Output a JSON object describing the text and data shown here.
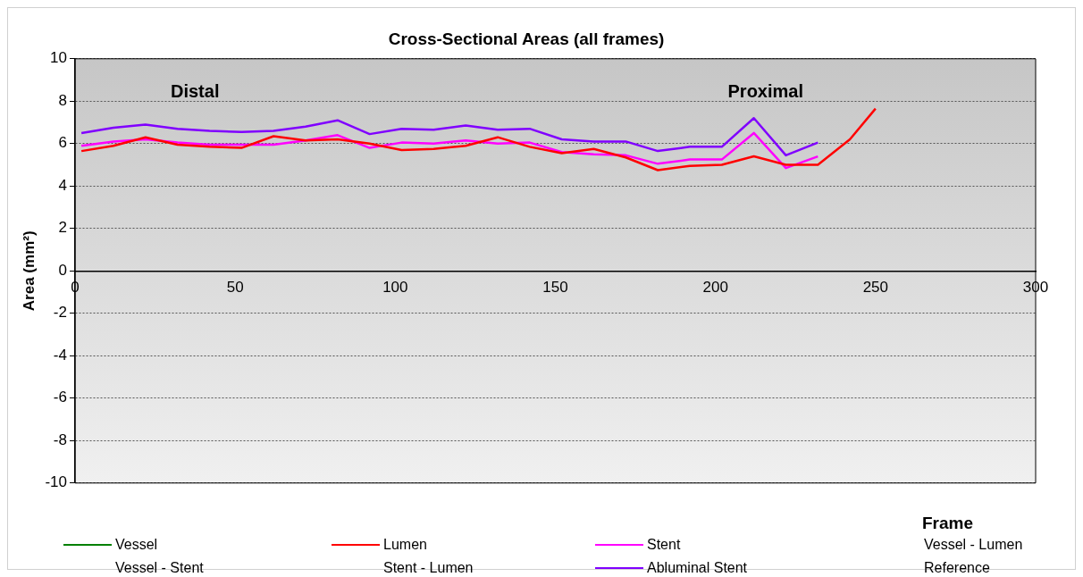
{
  "chart_data": {
    "type": "line",
    "title": "Cross-Sectional Areas (all frames)",
    "xlabel": "Frame",
    "ylabel": "Area (mm²)",
    "xlim": [
      0,
      300
    ],
    "xticks": [
      0,
      50,
      100,
      150,
      200,
      250,
      300
    ],
    "ylim": [
      -10,
      10
    ],
    "yticks": [
      -10,
      -8,
      -6,
      -4,
      -2,
      0,
      2,
      4,
      6,
      8,
      10
    ],
    "grid": "y",
    "legend": "bottom",
    "marker": "none",
    "line_style": "solid",
    "annotations": [
      "Distal",
      "Proximal"
    ],
    "series": [
      {
        "name": "Vessel",
        "color": "#008000"
      },
      {
        "name": "Lumen",
        "color": "#ff0000",
        "x": [
          2,
          12,
          22,
          32,
          42,
          52,
          62,
          72,
          82,
          92,
          102,
          112,
          122,
          132,
          142,
          152,
          162,
          172,
          182,
          192,
          202,
          212,
          222,
          232,
          242,
          250
        ],
        "values": [
          5.65,
          5.9,
          6.3,
          5.95,
          5.85,
          5.8,
          6.35,
          6.15,
          6.2,
          6.0,
          5.7,
          5.75,
          5.9,
          6.3,
          5.85,
          5.55,
          5.75,
          5.35,
          4.75,
          4.95,
          5.0,
          5.4,
          5.0,
          5.0,
          6.2,
          7.65
        ]
      },
      {
        "name": "Stent",
        "color": "#ff00ff",
        "x": [
          2,
          12,
          22,
          32,
          42,
          52,
          62,
          72,
          82,
          92,
          102,
          112,
          122,
          132,
          142,
          152,
          162,
          172,
          182,
          192,
          202,
          212,
          222,
          232
        ],
        "values": [
          5.9,
          6.1,
          6.2,
          6.05,
          5.95,
          5.95,
          5.95,
          6.15,
          6.4,
          5.8,
          6.05,
          6.0,
          6.15,
          6.0,
          6.05,
          5.6,
          5.5,
          5.45,
          5.05,
          5.25,
          5.25,
          6.5,
          4.85,
          5.4
        ]
      },
      {
        "name": "Vessel - Lumen"
      },
      {
        "name": "Vessel - Stent"
      },
      {
        "name": "Stent - Lumen"
      },
      {
        "name": "Abluminal Stent",
        "color": "#8000ff",
        "x": [
          2,
          12,
          22,
          32,
          42,
          52,
          62,
          72,
          82,
          92,
          102,
          112,
          122,
          132,
          142,
          152,
          162,
          172,
          182,
          192,
          202,
          212,
          222,
          232
        ],
        "values": [
          6.5,
          6.75,
          6.9,
          6.7,
          6.6,
          6.55,
          6.6,
          6.8,
          7.1,
          6.45,
          6.7,
          6.65,
          6.85,
          6.65,
          6.7,
          6.2,
          6.1,
          6.1,
          5.65,
          5.85,
          5.85,
          7.2,
          5.45,
          6.05
        ]
      },
      {
        "name": "Reference"
      }
    ]
  }
}
